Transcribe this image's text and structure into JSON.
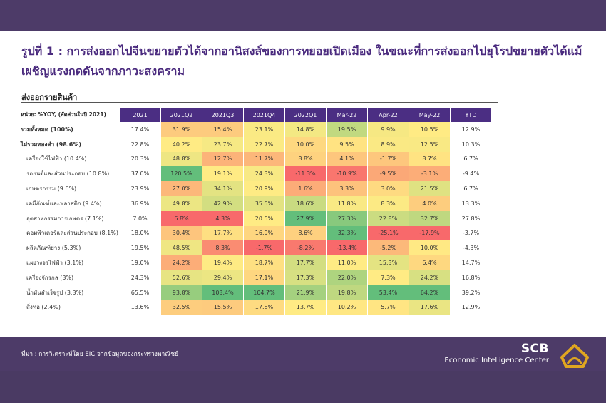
{
  "title": "รูปที่ 1 : การส่งออกไปจีนขยายตัวได้จากอานิสงส์ของการทยอยเปิดเมือง ในขณะที่การส่งออกไปยุโรปขยายตัวได้แม้เผชิญแรงกดดันจากภาวะสงคราม",
  "section_title": "ส่งออกรายสินค้า",
  "table": {
    "unit_label": "หน่วย: %YOY, (สัดส่วนในปี 2021)",
    "headers": [
      "2021",
      "2021Q2",
      "2021Q3",
      "2021Q4",
      "2022Q1",
      "Mar-22",
      "Apr-22",
      "May-22",
      "YTD"
    ],
    "rows": [
      {
        "label": "รวมทั้งหมด (100%)",
        "bold": true,
        "indent": false,
        "values": [
          "17.4%",
          "31.9%",
          "15.4%",
          "23.1%",
          "14.8%",
          "19.5%",
          "9.9%",
          "10.5%",
          "12.9%"
        ]
      },
      {
        "label": "ไม่รวมทองคำ (98.6%)",
        "bold": true,
        "indent": false,
        "values": [
          "22.8%",
          "40.2%",
          "23.7%",
          "22.7%",
          "10.0%",
          "9.5%",
          "8.9%",
          "12.5%",
          "10.3%"
        ]
      },
      {
        "label": "เครื่องใช้ไฟฟ้า (10.4%)",
        "bold": false,
        "indent": true,
        "values": [
          "20.3%",
          "48.8%",
          "12.7%",
          "11.7%",
          "8.8%",
          "4.1%",
          "-1.7%",
          "8.7%",
          "6.7%"
        ]
      },
      {
        "label": "รถยนต์และส่วนประกอบ (10.8%)",
        "bold": false,
        "indent": true,
        "values": [
          "37.0%",
          "120.5%",
          "19.1%",
          "24.3%",
          "-11.3%",
          "-10.9%",
          "-9.5%",
          "-3.1%",
          "-9.4%"
        ]
      },
      {
        "label": "เกษตรกรรม (9.6%)",
        "bold": false,
        "indent": true,
        "values": [
          "23.9%",
          "27.0%",
          "34.1%",
          "20.9%",
          "1.6%",
          "3.3%",
          "3.0%",
          "21.5%",
          "6.7%"
        ]
      },
      {
        "label": "เคมีภัณฑ์และพลาสติก (9.4%)",
        "bold": false,
        "indent": true,
        "values": [
          "36.9%",
          "49.8%",
          "42.9%",
          "35.5%",
          "18.6%",
          "11.8%",
          "8.3%",
          "4.0%",
          "13.3%"
        ]
      },
      {
        "label": "อุตสาหกรรมการเกษตร (7.1%)",
        "bold": false,
        "indent": true,
        "values": [
          "7.0%",
          "6.8%",
          "4.3%",
          "20.5%",
          "27.9%",
          "27.3%",
          "22.8%",
          "32.7%",
          "27.8%"
        ]
      },
      {
        "label": "คอมพิวเตอร์และส่วนประกอบ (8.1%)",
        "bold": false,
        "indent": true,
        "values": [
          "18.0%",
          "30.4%",
          "17.7%",
          "16.9%",
          "8.6%",
          "32.3%",
          "-25.1%",
          "-17.9%",
          "-3.7%"
        ]
      },
      {
        "label": "ผลิตภัณฑ์ยาง (5.3%)",
        "bold": false,
        "indent": true,
        "values": [
          "19.5%",
          "48.5%",
          "8.3%",
          "-1.7%",
          "-8.2%",
          "-13.4%",
          "-5.2%",
          "10.0%",
          "-4.3%"
        ]
      },
      {
        "label": "แผงวงจรไฟฟ้า (3.1%)",
        "bold": false,
        "indent": true,
        "values": [
          "19.0%",
          "24.2%",
          "19.4%",
          "18.7%",
          "17.7%",
          "11.0%",
          "15.3%",
          "6.4%",
          "14.7%"
        ]
      },
      {
        "label": "เครื่องจักรกล (3%)",
        "bold": false,
        "indent": true,
        "values": [
          "24.3%",
          "52.6%",
          "29.4%",
          "17.1%",
          "17.3%",
          "22.0%",
          "7.3%",
          "24.2%",
          "16.8%"
        ]
      },
      {
        "label": "น้ำมันสำเร็จรูป (3.3%)",
        "bold": false,
        "indent": true,
        "values": [
          "65.5%",
          "93.8%",
          "103.4%",
          "104.7%",
          "21.9%",
          "19.8%",
          "53.4%",
          "64.2%",
          "39.2%"
        ]
      },
      {
        "label": "สิ่งทอ (2.4%)",
        "bold": false,
        "indent": true,
        "values": [
          "13.6%",
          "32.5%",
          "15.5%",
          "17.8%",
          "13.7%",
          "10.2%",
          "5.7%",
          "17.6%",
          "12.9%"
        ]
      }
    ],
    "heatmap_columns": [
      1,
      2,
      3,
      4,
      5,
      6,
      7
    ]
  },
  "footer": {
    "source": "ที่มา : การวิเคราะห์โดย EIC จากข้อมูลของกระทรวงพาณิชย์",
    "logo_top": "SCB",
    "logo_bottom": "Economic Intelligence Center"
  },
  "colors": {
    "brand_purple": "#4b2e83",
    "bar_purple": "#4d3b68",
    "logo_gold": "#e0a620",
    "heat_red": "#f8696b",
    "heat_yellow": "#ffeb84",
    "heat_green": "#63be7b"
  }
}
